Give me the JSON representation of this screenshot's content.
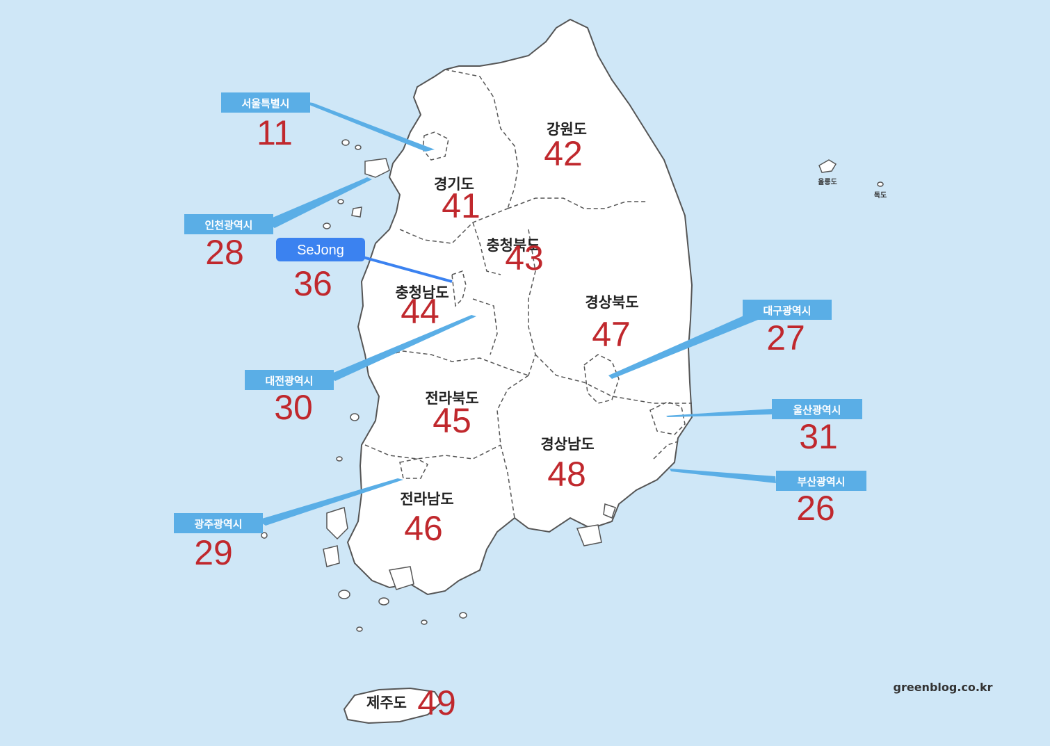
{
  "colors": {
    "sea": "#cfe7f7",
    "land": "#ffffff",
    "border": "#555555",
    "code": "#c0282d",
    "tag": "#5aaee6",
    "sejong_tag": "#3b82f0"
  },
  "provinces": {
    "gyeonggi": "경기도",
    "gangwon": "강원도",
    "chungbuk": "충청북도",
    "chungnam": "충청남도",
    "gyeongbuk": "경상북도",
    "jeonbuk": "전라북도",
    "gyeongnam": "경상남도",
    "jeonnam": "전라남도",
    "jeju": "제주도"
  },
  "cities": {
    "seoul": "서울특별시",
    "incheon": "인천광역시",
    "sejong": "SeJong",
    "daejeon": "대전광역시",
    "daegu": "대구광역시",
    "ulsan": "울산광역시",
    "busan": "부산광역시",
    "gwangju": "광주광역시"
  },
  "codes": {
    "seoul": "11",
    "incheon": "28",
    "sejong": "36",
    "daejeon": "30",
    "gwangju": "29",
    "daegu": "27",
    "ulsan": "31",
    "busan": "26",
    "gyeonggi": "41",
    "gangwon": "42",
    "chungbuk": "43",
    "chungnam": "44",
    "gyeongbuk": "47",
    "jeonbuk": "45",
    "gyeongnam": "48",
    "jeonnam": "46",
    "jeju": "49"
  },
  "islands": {
    "ulleung": "울릉도",
    "dokdo": "독도"
  },
  "watermark": "greenblog.co.kr"
}
